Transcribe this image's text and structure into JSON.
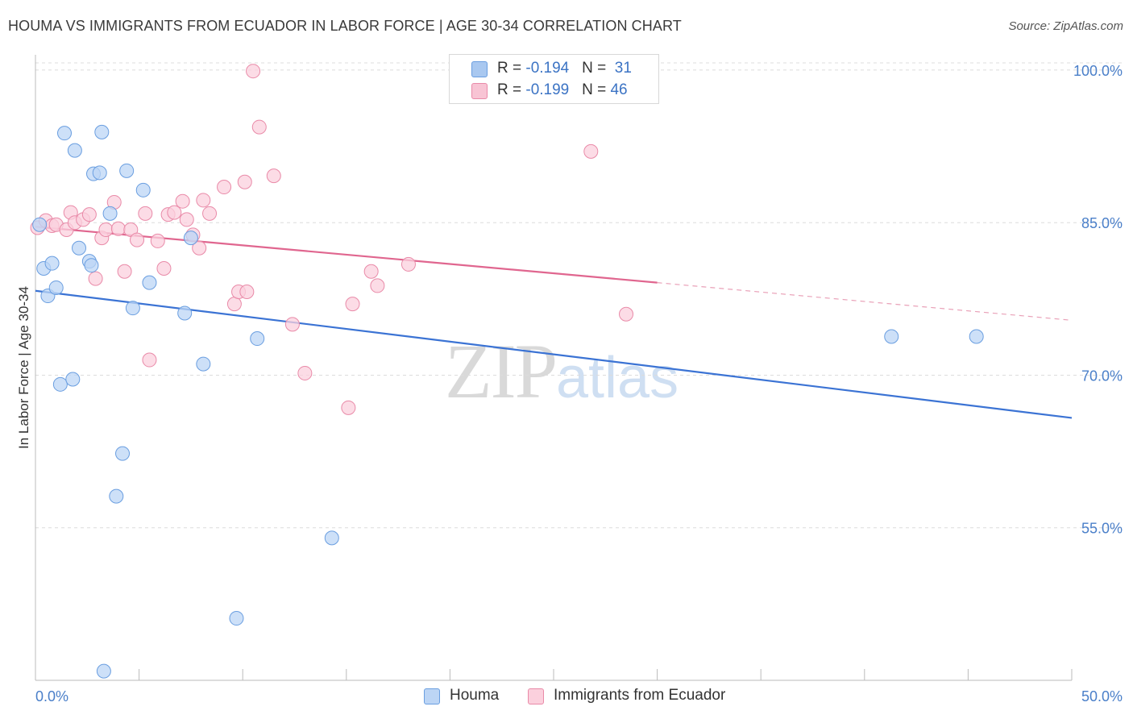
{
  "header": {
    "title": "HOUMA VS IMMIGRANTS FROM ECUADOR IN LABOR FORCE | AGE 30-34 CORRELATION CHART",
    "source": "Source: ZipAtlas.com"
  },
  "watermark": {
    "zip": "ZIP",
    "atlas": "atlas"
  },
  "legend_top": [
    {
      "r_label": "R = ",
      "r_value": "-0.194",
      "n_label": "N = ",
      "n_value": "31",
      "color": "#a9c8f0",
      "border": "#6a9ee0"
    },
    {
      "r_label": "R = ",
      "r_value": "-0.199",
      "n_label": "N = ",
      "n_value": "46",
      "color": "#f8c4d4",
      "border": "#e98aa8"
    }
  ],
  "legend_bottom": [
    {
      "label": "Houma",
      "color": "#bcd5f5",
      "border": "#6a9ee0"
    },
    {
      "label": "Immigrants from Ecuador",
      "color": "#fbd0dd",
      "border": "#e98aa8"
    }
  ],
  "chart_data": {
    "type": "scatter",
    "title": "HOUMA VS IMMIGRANTS FROM ECUADOR IN LABOR FORCE | AGE 30-34 CORRELATION CHART",
    "xlabel": "",
    "ylabel": "In Labor Force | Age 30-34",
    "xlim": [
      0,
      50
    ],
    "ylim": [
      40,
      101.5
    ],
    "x_tick_labels": [
      "0.0%",
      "50.0%"
    ],
    "y_ticks": [
      55,
      70,
      85,
      100
    ],
    "y_tick_labels": [
      "55.0%",
      "70.0%",
      "85.0%",
      "100.0%"
    ],
    "grid": true,
    "series": [
      {
        "name": "Houma",
        "color": "#6a9ee0",
        "fill": "#bcd5f5",
        "points": [
          [
            0.2,
            84.8
          ],
          [
            0.4,
            80.5
          ],
          [
            0.6,
            77.8
          ],
          [
            0.8,
            81.0
          ],
          [
            1.0,
            78.6
          ],
          [
            1.2,
            69.1
          ],
          [
            1.4,
            93.8
          ],
          [
            1.8,
            69.6
          ],
          [
            1.9,
            92.1
          ],
          [
            2.1,
            82.5
          ],
          [
            2.6,
            81.2
          ],
          [
            2.7,
            80.8
          ],
          [
            2.8,
            89.8
          ],
          [
            3.1,
            89.9
          ],
          [
            3.2,
            93.9
          ],
          [
            3.3,
            40.9
          ],
          [
            3.6,
            85.9
          ],
          [
            3.9,
            58.1
          ],
          [
            4.2,
            62.3
          ],
          [
            4.4,
            90.1
          ],
          [
            4.7,
            76.6
          ],
          [
            5.2,
            88.2
          ],
          [
            5.5,
            79.1
          ],
          [
            7.2,
            76.1
          ],
          [
            7.5,
            83.5
          ],
          [
            8.1,
            71.1
          ],
          [
            9.7,
            46.1
          ],
          [
            10.7,
            73.6
          ],
          [
            14.3,
            54.0
          ],
          [
            41.3,
            73.8
          ],
          [
            45.4,
            73.8
          ]
        ],
        "trend": {
          "x0": 0,
          "y0": 78.3,
          "x1": 50,
          "y1": 65.8
        }
      },
      {
        "name": "Immigrants from Ecuador",
        "color": "#e98aa8",
        "fill": "#fbd0dd",
        "points": [
          [
            0.1,
            84.5
          ],
          [
            0.5,
            85.2
          ],
          [
            0.8,
            84.7
          ],
          [
            1.0,
            84.8
          ],
          [
            1.5,
            84.3
          ],
          [
            1.7,
            86.0
          ],
          [
            1.9,
            85.0
          ],
          [
            2.3,
            85.3
          ],
          [
            2.6,
            85.8
          ],
          [
            2.9,
            79.5
          ],
          [
            3.2,
            83.5
          ],
          [
            3.4,
            84.3
          ],
          [
            3.8,
            87.0
          ],
          [
            4.0,
            84.4
          ],
          [
            4.3,
            80.2
          ],
          [
            4.6,
            84.3
          ],
          [
            4.9,
            83.3
          ],
          [
            5.3,
            85.9
          ],
          [
            5.5,
            71.5
          ],
          [
            5.9,
            83.2
          ],
          [
            6.2,
            80.5
          ],
          [
            6.4,
            85.8
          ],
          [
            6.7,
            86.0
          ],
          [
            7.1,
            87.1
          ],
          [
            7.3,
            85.3
          ],
          [
            7.6,
            83.8
          ],
          [
            7.9,
            82.5
          ],
          [
            8.1,
            87.2
          ],
          [
            8.4,
            85.9
          ],
          [
            9.1,
            88.5
          ],
          [
            9.6,
            77.0
          ],
          [
            9.8,
            78.2
          ],
          [
            10.1,
            89.0
          ],
          [
            10.2,
            78.2
          ],
          [
            10.5,
            99.9
          ],
          [
            10.8,
            94.4
          ],
          [
            11.5,
            89.6
          ],
          [
            12.4,
            75.0
          ],
          [
            13.0,
            70.2
          ],
          [
            15.1,
            66.8
          ],
          [
            15.3,
            77.0
          ],
          [
            16.2,
            80.2
          ],
          [
            16.5,
            78.8
          ],
          [
            18.0,
            80.9
          ],
          [
            26.8,
            92.0
          ],
          [
            28.5,
            76.0
          ]
        ],
        "trend": {
          "x0": 0,
          "y0": 84.6,
          "x1": 30,
          "y1": 79.1,
          "dashed_x1": 50,
          "dashed_y1": 75.4
        }
      }
    ]
  }
}
